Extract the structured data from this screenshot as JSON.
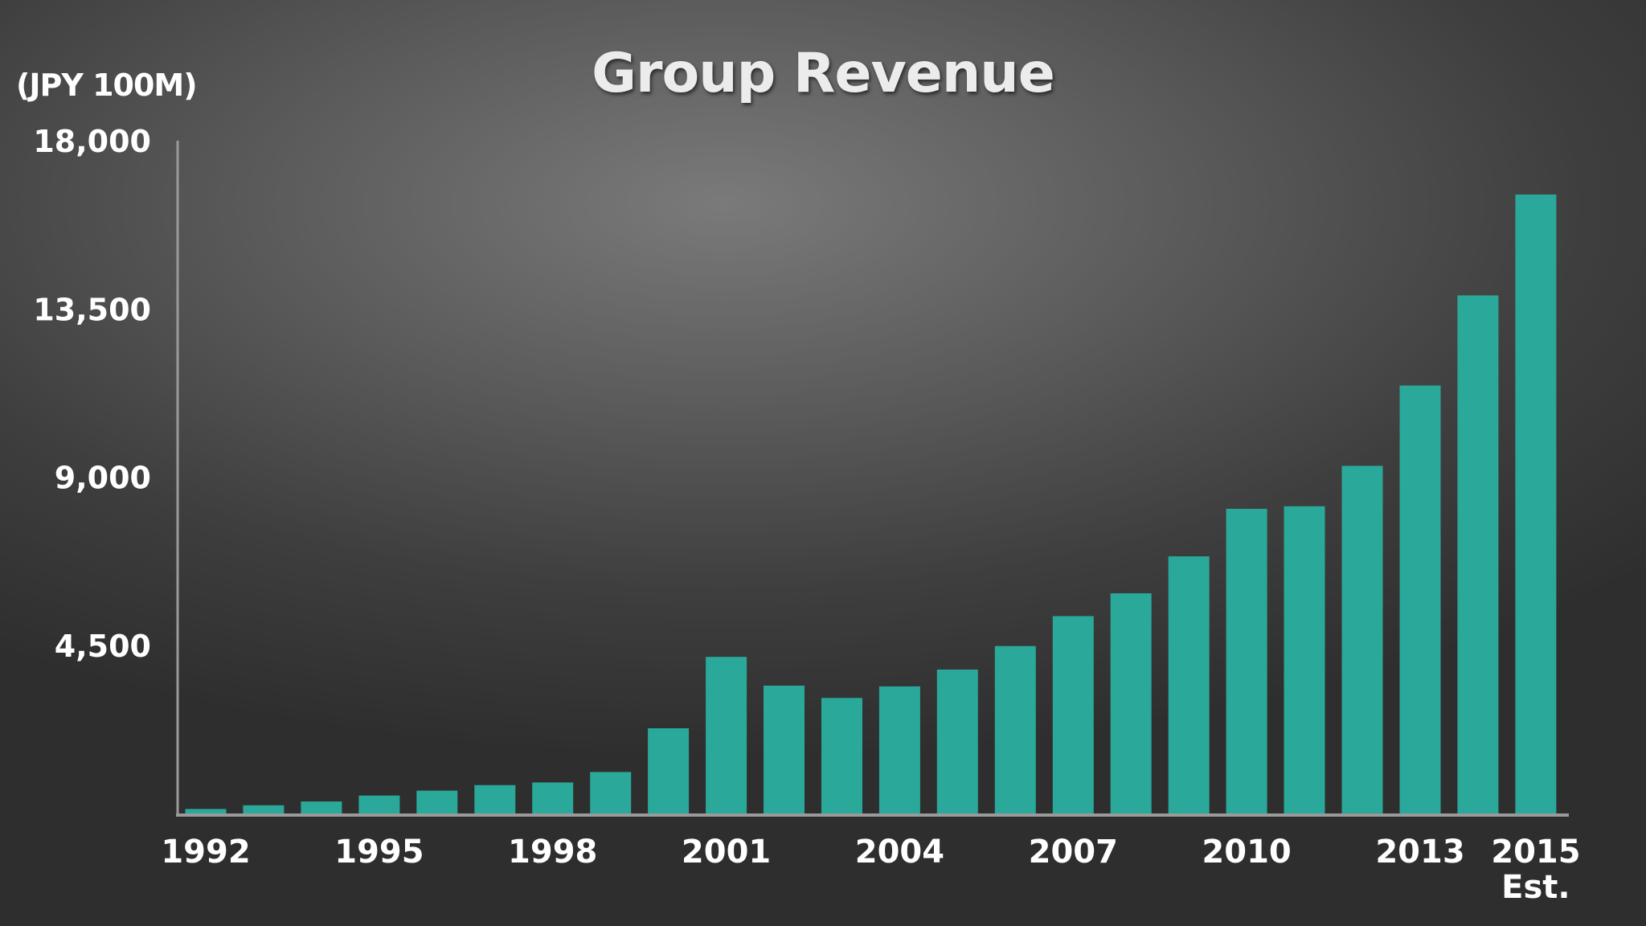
{
  "chart_data": {
    "type": "bar",
    "title": "Group Revenue",
    "unit_label": "(JPY 100M)",
    "categories": [
      "1992",
      "1993",
      "1994",
      "1995",
      "1996",
      "1997",
      "1998",
      "1999",
      "2000",
      "2001",
      "2002",
      "2003",
      "2004",
      "2005",
      "2006",
      "2007",
      "2008",
      "2009",
      "2010",
      "2011",
      "2012",
      "2013",
      "2014",
      "2015"
    ],
    "values": [
      120,
      220,
      320,
      480,
      610,
      760,
      830,
      1110,
      2280,
      4190,
      3420,
      3090,
      3400,
      3850,
      4480,
      5280,
      5890,
      6880,
      8150,
      8220,
      9300,
      11450,
      13860,
      16560
    ],
    "x_tick_labels": [
      "1992",
      "1995",
      "1998",
      "2001",
      "2004",
      "2007",
      "2010",
      "2013",
      "2015"
    ],
    "x_tick_sublabel": "Est.",
    "y_ticks": [
      "18,000",
      "13,500",
      "9,000",
      "4,500"
    ],
    "y_tick_values": [
      18000,
      13500,
      9000,
      4500
    ],
    "ylim": [
      0,
      18000
    ],
    "grid": false,
    "bar_color": "#2aa89a",
    "axis_color": "#9a9a9a"
  }
}
